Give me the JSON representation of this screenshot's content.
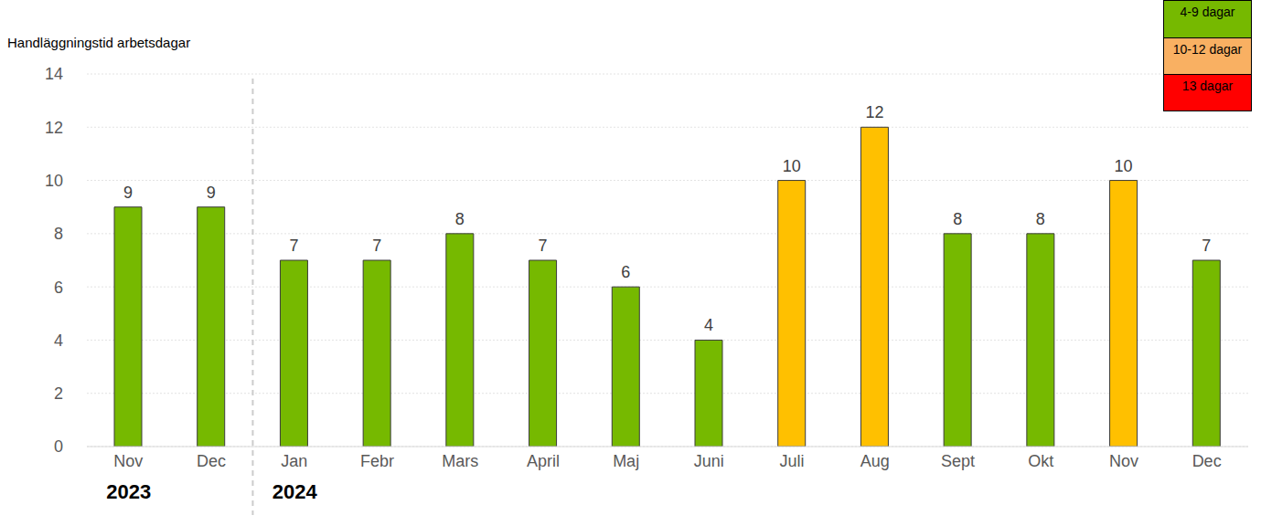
{
  "chart_data": {
    "type": "bar",
    "y_label": "Handläggningstid arbetsdagar",
    "categories": [
      "Nov",
      "Dec",
      "Jan",
      "Febr",
      "Mars",
      "April",
      "Maj",
      "Juni",
      "Juli",
      "Aug",
      "Sept",
      "Okt",
      "Nov",
      "Dec"
    ],
    "values": [
      9,
      9,
      7,
      7,
      8,
      7,
      6,
      4,
      10,
      12,
      8,
      8,
      10,
      7
    ],
    "colors": [
      "#76b900",
      "#76b900",
      "#76b900",
      "#76b900",
      "#76b900",
      "#76b900",
      "#76b900",
      "#76b900",
      "#ffc000",
      "#ffc000",
      "#76b900",
      "#76b900",
      "#ffc000",
      "#76b900"
    ],
    "groups": [
      {
        "label": "2023",
        "start": 0
      },
      {
        "label": "2024",
        "start": 2
      }
    ],
    "ylim": [
      0,
      14
    ],
    "yticks": [
      0,
      2,
      4,
      6,
      8,
      10,
      12,
      14
    ],
    "grid": true,
    "data_labels": true,
    "legend": "top-right",
    "legend_items": [
      {
        "label": "4-9 dagar",
        "color": "#76b900"
      },
      {
        "label": "10-12 dagar",
        "color": "#f9b062"
      },
      {
        "label": "13 dagar",
        "color": "#ff0000"
      }
    ]
  }
}
